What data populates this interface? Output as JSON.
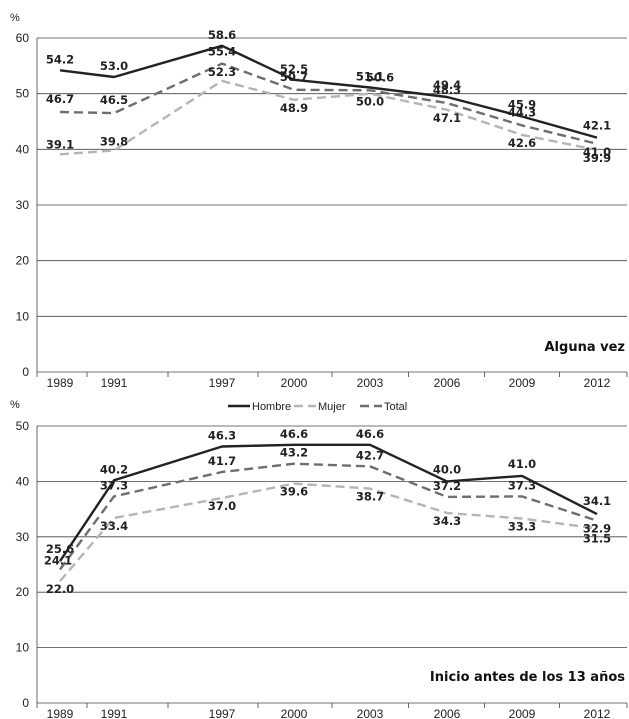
{
  "legend": [
    "Hombre",
    "Mujer",
    "Total"
  ],
  "chart_data": [
    {
      "type": "line",
      "title": "Alguna vez",
      "ylabel": "%",
      "categories": [
        "1989",
        "1991",
        "1997",
        "2000",
        "2003",
        "2006",
        "2009",
        "2012"
      ],
      "ylim": [
        0,
        60
      ],
      "yticks": [
        0,
        10,
        20,
        30,
        40,
        50,
        60
      ],
      "grid": true,
      "series": [
        {
          "name": "Hombre",
          "values": [
            54.2,
            53.0,
            58.6,
            52.5,
            51.1,
            49.4,
            45.9,
            42.1
          ],
          "color": "#222222",
          "style": "solid"
        },
        {
          "name": "Mujer",
          "values": [
            39.1,
            39.8,
            52.3,
            48.9,
            50.0,
            47.1,
            42.6,
            39.9
          ],
          "color": "#b5b5b5",
          "style": "dashed"
        },
        {
          "name": "Total",
          "values": [
            46.7,
            46.5,
            55.4,
            50.7,
            50.6,
            48.3,
            44.3,
            41.0
          ],
          "color": "#6e6e6e",
          "style": "dashed"
        }
      ]
    },
    {
      "type": "line",
      "title": "Inicio antes de los 13 años",
      "ylabel": "%",
      "categories": [
        "1989",
        "1991",
        "1997",
        "2000",
        "2003",
        "2006",
        "2009",
        "2012"
      ],
      "ylim": [
        0,
        50
      ],
      "yticks": [
        0,
        10,
        20,
        30,
        40,
        50
      ],
      "grid": true,
      "series": [
        {
          "name": "Hombre",
          "values": [
            25.6,
            40.2,
            46.3,
            46.6,
            46.6,
            40.0,
            41.0,
            34.1
          ],
          "color": "#222222",
          "style": "solid"
        },
        {
          "name": "Mujer",
          "values": [
            22.0,
            33.4,
            37.0,
            39.6,
            38.7,
            34.3,
            33.3,
            31.5
          ],
          "color": "#b5b5b5",
          "style": "dashed"
        },
        {
          "name": "Total",
          "values": [
            24.1,
            37.3,
            41.7,
            43.2,
            42.7,
            37.2,
            37.3,
            32.9
          ],
          "color": "#6e6e6e",
          "style": "dashed"
        }
      ]
    }
  ]
}
